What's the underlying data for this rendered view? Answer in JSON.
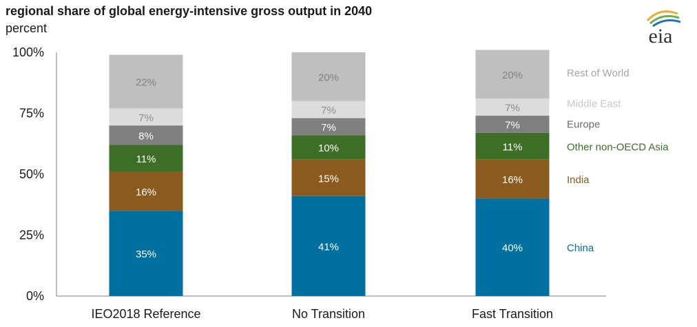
{
  "header": {
    "title": "regional share of global energy-intensive gross output in 2040",
    "subtitle": "percent"
  },
  "logo": {
    "text": "eia",
    "icon": "eia-logo"
  },
  "chart_data": {
    "type": "bar",
    "stacked": true,
    "categories": [
      "IEO2018 Reference",
      "No Transition",
      "Fast Transition"
    ],
    "ylim": [
      0,
      100
    ],
    "yticks": [
      {
        "value": 0,
        "label": "0%"
      },
      {
        "value": 25,
        "label": "25%"
      },
      {
        "value": 50,
        "label": "50%"
      },
      {
        "value": 75,
        "label": "75%"
      },
      {
        "value": 100,
        "label": "100%"
      }
    ],
    "legend_position": "right",
    "grid": false,
    "series": [
      {
        "name": "China",
        "color": "#0070a0",
        "label_color": "#ffffff",
        "values": [
          35,
          41,
          40
        ],
        "labels": [
          "35%",
          "41%",
          "40%"
        ]
      },
      {
        "name": "India",
        "color": "#8b5a1e",
        "label_color": "#ffffff",
        "values": [
          16,
          15,
          16
        ],
        "labels": [
          "16%",
          "15%",
          "16%"
        ]
      },
      {
        "name": "Other non-OECD Asia",
        "color": "#3e6d25",
        "label_color": "#ffffff",
        "values": [
          11,
          10,
          11
        ],
        "labels": [
          "11%",
          "10%",
          "11%"
        ]
      },
      {
        "name": "Europe",
        "color": "#7f7f7f",
        "label_color": "#ffffff",
        "values": [
          8,
          7,
          7
        ],
        "labels": [
          "8%",
          "7%",
          "7%"
        ]
      },
      {
        "name": "Middle East",
        "color": "#dcdcdc",
        "label_color": "#8c8c8c",
        "values": [
          7,
          7,
          7
        ],
        "labels": [
          "7%",
          "7%",
          "7%"
        ]
      },
      {
        "name": "Rest of World",
        "color": "#bfbfbf",
        "label_color": "#808080",
        "values": [
          22,
          20,
          20
        ],
        "labels": [
          "22%",
          "20%",
          "20%"
        ]
      }
    ],
    "legend_colors": [
      "#0070a0",
      "#8b5a1e",
      "#3e6d25",
      "#6b6b6b",
      "#c8c8c8",
      "#a6a6a6"
    ]
  }
}
